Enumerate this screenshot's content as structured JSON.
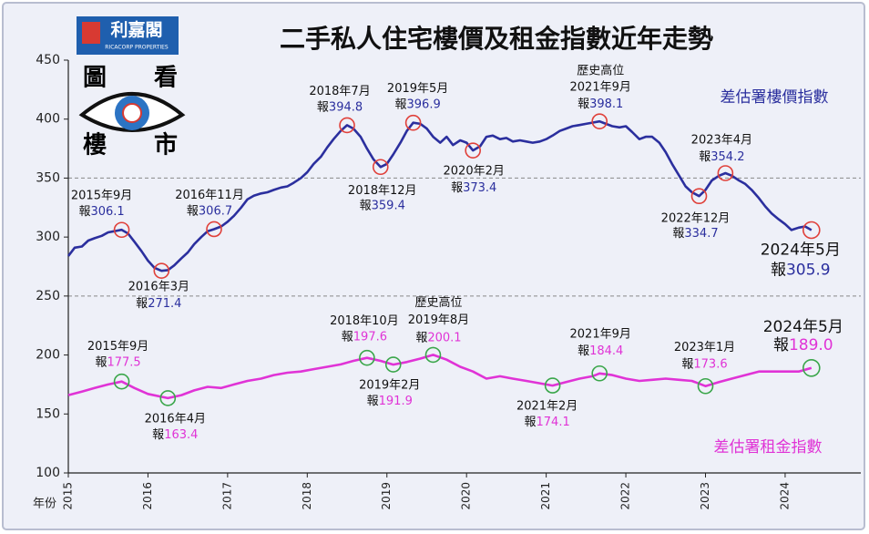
{
  "chart_data": {
    "type": "line",
    "title": "二手私人住宅樓價及租金指數近年走勢",
    "logo": {
      "brand": "利嘉閣",
      "brand_en": "RICACORP PROPERTIES",
      "chars": [
        "圖",
        "看",
        "樓",
        "市"
      ]
    },
    "x_label": "年份",
    "xlim": [
      2015,
      2024.95
    ],
    "xticks": [
      2015,
      2016,
      2017,
      2018,
      2019,
      2020,
      2021,
      2022,
      2023,
      2024
    ],
    "ylim": [
      100,
      450
    ],
    "yticks": [
      100,
      150,
      200,
      250,
      300,
      350,
      400,
      450
    ],
    "grid_lines": [
      250,
      350
    ],
    "series": [
      {
        "name": "差估署樓價指數",
        "color": "#2b2f9e",
        "marker_color": "#e0403a",
        "x": [
          2015,
          2015.08,
          2015.17,
          2015.25,
          2015.33,
          2015.42,
          2015.5,
          2015.58,
          2015.67,
          2015.75,
          2015.83,
          2015.92,
          2016,
          2016.08,
          2016.17,
          2016.25,
          2016.33,
          2016.42,
          2016.5,
          2016.58,
          2016.67,
          2016.75,
          2016.83,
          2016.92,
          2017,
          2017.08,
          2017.17,
          2017.25,
          2017.33,
          2017.42,
          2017.5,
          2017.58,
          2017.67,
          2017.75,
          2017.83,
          2017.92,
          2018,
          2018.08,
          2018.17,
          2018.25,
          2018.33,
          2018.42,
          2018.5,
          2018.58,
          2018.67,
          2018.75,
          2018.83,
          2018.92,
          2019,
          2019.08,
          2019.17,
          2019.25,
          2019.33,
          2019.42,
          2019.5,
          2019.58,
          2019.67,
          2019.75,
          2019.83,
          2019.92,
          2020,
          2020.08,
          2020.17,
          2020.25,
          2020.33,
          2020.42,
          2020.5,
          2020.58,
          2020.67,
          2020.75,
          2020.83,
          2020.92,
          2021,
          2021.08,
          2021.17,
          2021.25,
          2021.33,
          2021.42,
          2021.5,
          2021.58,
          2021.67,
          2021.75,
          2021.83,
          2021.92,
          2022,
          2022.08,
          2022.17,
          2022.25,
          2022.33,
          2022.42,
          2022.5,
          2022.58,
          2022.67,
          2022.75,
          2022.83,
          2022.92,
          2023,
          2023.08,
          2023.17,
          2023.25,
          2023.33,
          2023.42,
          2023.5,
          2023.58,
          2023.67,
          2023.75,
          2023.83,
          2023.92,
          2024,
          2024.08,
          2024.17,
          2024.25,
          2024.33
        ],
        "values": [
          284,
          291,
          292,
          297,
          299,
          301,
          304,
          305,
          306.1,
          303,
          296,
          288,
          280,
          274,
          271.4,
          272,
          276,
          282,
          287,
          294,
          300,
          305,
          306.7,
          309,
          313,
          318,
          325,
          332,
          335,
          337,
          338,
          340,
          342,
          343,
          346,
          350,
          355,
          362,
          368,
          376,
          383,
          390,
          394.8,
          392,
          385,
          375,
          366,
          359.4,
          362,
          370,
          380,
          390,
          396.9,
          396,
          392,
          385,
          380,
          385,
          378,
          382,
          380,
          373.4,
          377,
          385,
          386,
          383,
          384,
          381,
          382,
          381,
          380,
          381,
          383,
          386,
          390,
          392,
          394,
          395,
          396,
          397,
          398.1,
          396,
          394,
          393,
          394,
          389,
          383,
          385,
          385,
          380,
          372,
          362,
          352,
          343,
          338,
          334.7,
          340,
          348,
          352,
          354.2,
          352,
          348,
          345,
          340,
          333,
          326,
          320,
          315,
          311,
          306,
          308,
          309,
          305.9
        ]
      },
      {
        "name": "差估署租金指數",
        "color": "#e033d6",
        "marker_color": "#3aa64a",
        "x": [
          2015,
          2015.17,
          2015.33,
          2015.5,
          2015.67,
          2015.83,
          2016,
          2016.25,
          2016.42,
          2016.58,
          2016.75,
          2016.92,
          2017.08,
          2017.25,
          2017.42,
          2017.58,
          2017.75,
          2017.92,
          2018.08,
          2018.25,
          2018.42,
          2018.58,
          2018.75,
          2018.92,
          2019.08,
          2019.25,
          2019.42,
          2019.58,
          2019.75,
          2019.92,
          2020.08,
          2020.25,
          2020.42,
          2020.58,
          2020.75,
          2020.92,
          2021.08,
          2021.25,
          2021.42,
          2021.58,
          2021.67,
          2021.83,
          2022,
          2022.17,
          2022.33,
          2022.5,
          2022.67,
          2022.83,
          2023,
          2023.17,
          2023.33,
          2023.5,
          2023.67,
          2023.83,
          2024,
          2024.17,
          2024.33
        ],
        "values": [
          166,
          169,
          172,
          175,
          177.5,
          172,
          167,
          163.4,
          166,
          170,
          173,
          172,
          175,
          178,
          180,
          183,
          185,
          186,
          188,
          190,
          192,
          195,
          197.6,
          195,
          191.9,
          194,
          197,
          200.1,
          196,
          190,
          186,
          180,
          182,
          180,
          178,
          176,
          174.1,
          177,
          180,
          182,
          184.4,
          183,
          180,
          178,
          179,
          180,
          179,
          178,
          173.6,
          177,
          180,
          183,
          186,
          186,
          186,
          186,
          189
        ]
      }
    ],
    "annotations": [
      [
        {
          "date": "2015年9月",
          "prefix": "報",
          "value": 306.1
        },
        {
          "date": "2016年3月",
          "prefix": "報",
          "value": 271.4
        },
        {
          "date": "2016年11月",
          "prefix": "報",
          "value": 306.7
        },
        {
          "date": "2018年7月",
          "prefix": "報",
          "value": 394.8
        },
        {
          "date": "2018年12月",
          "prefix": "報",
          "value": 359.4
        },
        {
          "date": "2019年5月",
          "prefix": "報",
          "value": 396.9
        },
        {
          "date": "2020年2月",
          "prefix": "報",
          "value": 373.4
        },
        {
          "note": "歷史高位",
          "date": "2021年9月",
          "prefix": "報",
          "value": 398.1
        },
        {
          "date": "2022年12月",
          "prefix": "報",
          "value": 334.7
        },
        {
          "date": "2023年4月",
          "prefix": "報",
          "value": 354.2
        },
        {
          "date": "2024年5月",
          "prefix": "報",
          "value": 305.9
        }
      ],
      [
        {
          "date": "2015年9月",
          "prefix": "報",
          "value": 177.5
        },
        {
          "date": "2016年4月",
          "prefix": "報",
          "value": 163.4
        },
        {
          "date": "2018年10月",
          "prefix": "報",
          "value": 197.6
        },
        {
          "date": "2019年2月",
          "prefix": "報",
          "value": 191.9
        },
        {
          "note": "歷史高位",
          "date": "2019年8月",
          "prefix": "報",
          "value": 200.1
        },
        {
          "date": "2021年2月",
          "prefix": "報",
          "value": 174.1
        },
        {
          "date": "2021年9月",
          "prefix": "報",
          "value": 184.4
        },
        {
          "date": "2023年1月",
          "prefix": "報",
          "value": 173.6
        },
        {
          "date": "2024年5月",
          "prefix": "報",
          "value": 189,
          "value_label": "189.0"
        }
      ]
    ]
  }
}
